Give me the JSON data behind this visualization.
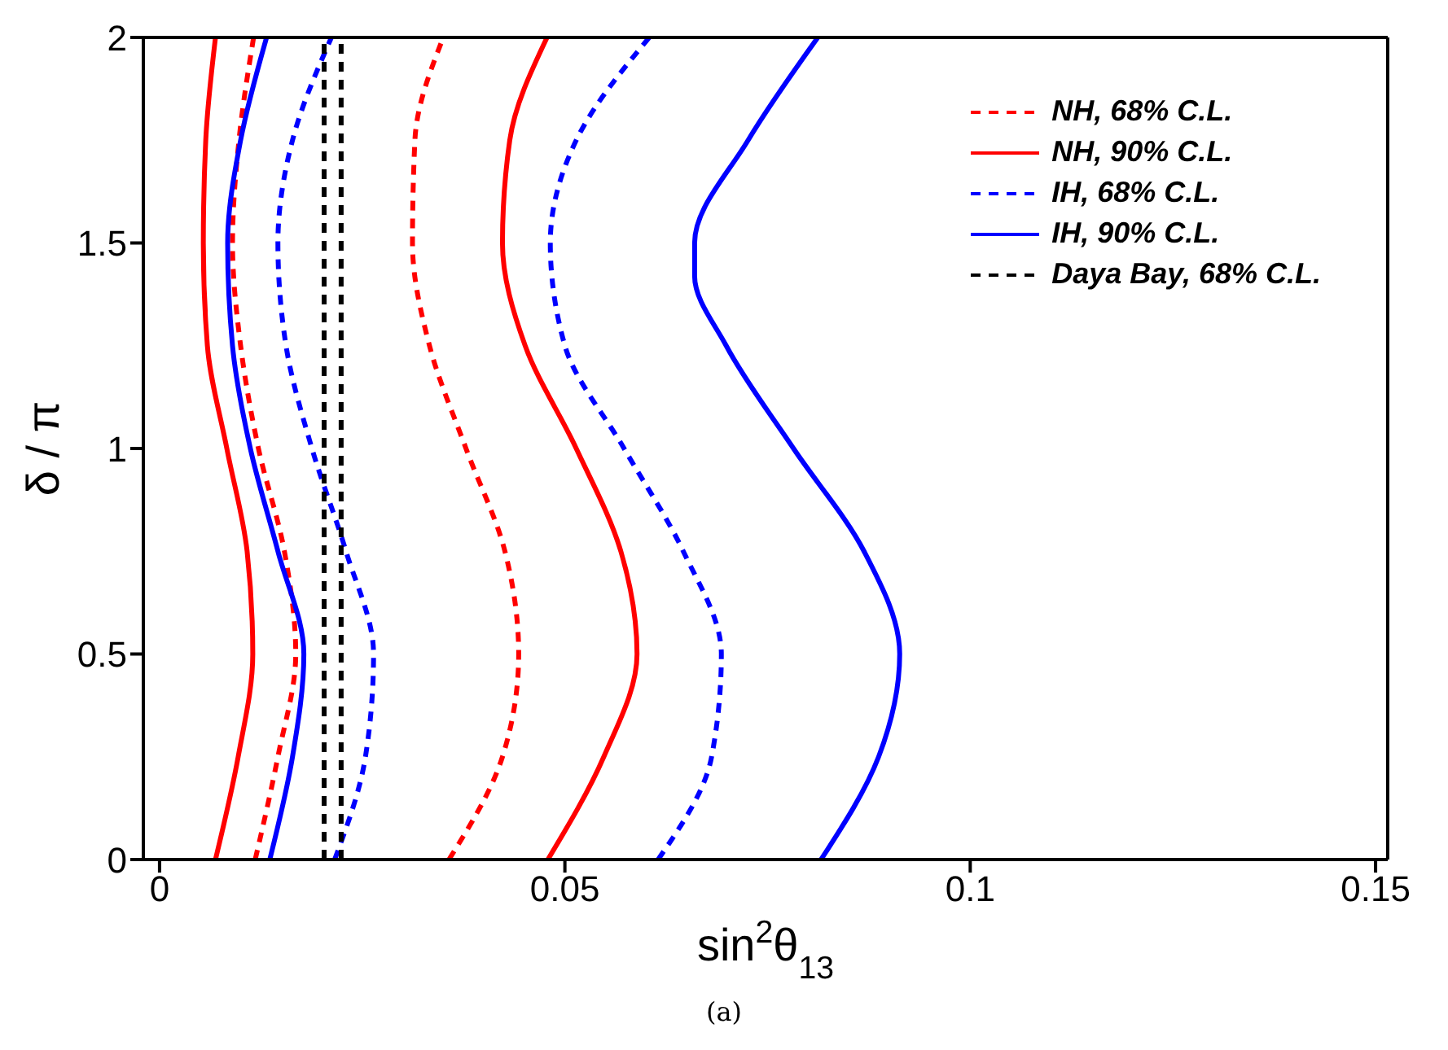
{
  "chart_data": {
    "type": "line",
    "xlabel": "sin$^{2}$θ$_{13}$",
    "ylabel": "δ / π",
    "annotations": [
      "(a)"
    ],
    "xlim": [
      -0.002,
      0.1515
    ],
    "xticks": [
      0,
      0.05,
      0.1,
      0.15
    ],
    "ylim": [
      0,
      2
    ],
    "yticks": [
      0,
      0.5,
      1,
      1.5,
      2
    ],
    "grid": false,
    "legend": "top right",
    "marker": "none",
    "series": [
      {
        "name": "NH, 68% C.L.",
        "color": "#ff0000",
        "line_style": "dashed",
        "x": [
          0.0118,
          0.0146,
          0.0168,
          0.0154,
          0.0122,
          0.01,
          0.009,
          0.0098,
          0.0116
        ],
        "values": [
          0,
          0.25,
          0.5,
          0.75,
          1,
          1.25,
          1.5,
          1.75,
          2
        ]
      },
      {
        "color": "#ff0000",
        "line_style": "dashed",
        "x": [
          0.0357,
          0.0423,
          0.0443,
          0.0426,
          0.0378,
          0.0333,
          0.0312,
          0.0315,
          0.035
        ],
        "values": [
          0,
          0.25,
          0.5,
          0.75,
          1,
          1.25,
          1.5,
          1.75,
          2
        ]
      },
      {
        "name": "NH, 90% C.L.",
        "color": "#ff0000",
        "line_style": "solid",
        "x": [
          0.0069,
          0.0097,
          0.0115,
          0.0108,
          0.0083,
          0.0059,
          0.0054,
          0.0057,
          0.0069
        ],
        "values": [
          0,
          0.25,
          0.5,
          0.75,
          1,
          1.25,
          1.5,
          1.75,
          2
        ]
      },
      {
        "color": "#ff0000",
        "line_style": "solid",
        "x": [
          0.0479,
          0.0548,
          0.0589,
          0.0569,
          0.0514,
          0.0451,
          0.0423,
          0.0432,
          0.0478
        ],
        "values": [
          0,
          0.25,
          0.5,
          0.75,
          1,
          1.25,
          1.5,
          1.75,
          2
        ]
      },
      {
        "name": "IH, 68% C.L.",
        "color": "#0000ff",
        "line_style": "dashed",
        "x": [
          0.0216,
          0.0254,
          0.0264,
          0.023,
          0.0188,
          0.0156,
          0.0146,
          0.0164,
          0.0212
        ],
        "values": [
          0,
          0.25,
          0.5,
          0.75,
          1,
          1.25,
          1.5,
          1.75,
          2
        ]
      },
      {
        "color": "#0000ff",
        "line_style": "dashed",
        "x": [
          0.0615,
          0.0681,
          0.0693,
          0.0646,
          0.0573,
          0.05,
          0.0482,
          0.0514,
          0.0604
        ],
        "values": [
          0,
          0.25,
          0.5,
          0.75,
          1,
          1.25,
          1.5,
          1.75,
          2
        ]
      },
      {
        "name": "IH, 90% C.L.",
        "color": "#0000ff",
        "line_style": "solid",
        "x": [
          0.0136,
          0.0164,
          0.0178,
          0.0146,
          0.0112,
          0.009,
          0.0084,
          0.01,
          0.0132
        ],
        "values": [
          0,
          0.25,
          0.5,
          0.75,
          1,
          1.25,
          1.5,
          1.75,
          2
        ]
      },
      {
        "color": "#0000ff",
        "line_style": "solid",
        "x": [
          0.0816,
          0.0887,
          0.0913,
          0.0869,
          0.0782,
          0.0699,
          0.066,
          0.066,
          0.0726,
          0.0812
        ],
        "values": [
          0,
          0.25,
          0.5,
          0.75,
          1,
          1.25,
          1.42,
          1.5,
          1.75,
          2
        ]
      },
      {
        "name": "Daya Bay, 68% C.L.",
        "color": "#000000",
        "line_style": "dashed",
        "x": [
          0.0203,
          0.0203
        ],
        "values": [
          0,
          2
        ]
      },
      {
        "color": "#000000",
        "line_style": "dashed",
        "x": [
          0.0224,
          0.0224
        ],
        "values": [
          0,
          2
        ]
      }
    ]
  }
}
